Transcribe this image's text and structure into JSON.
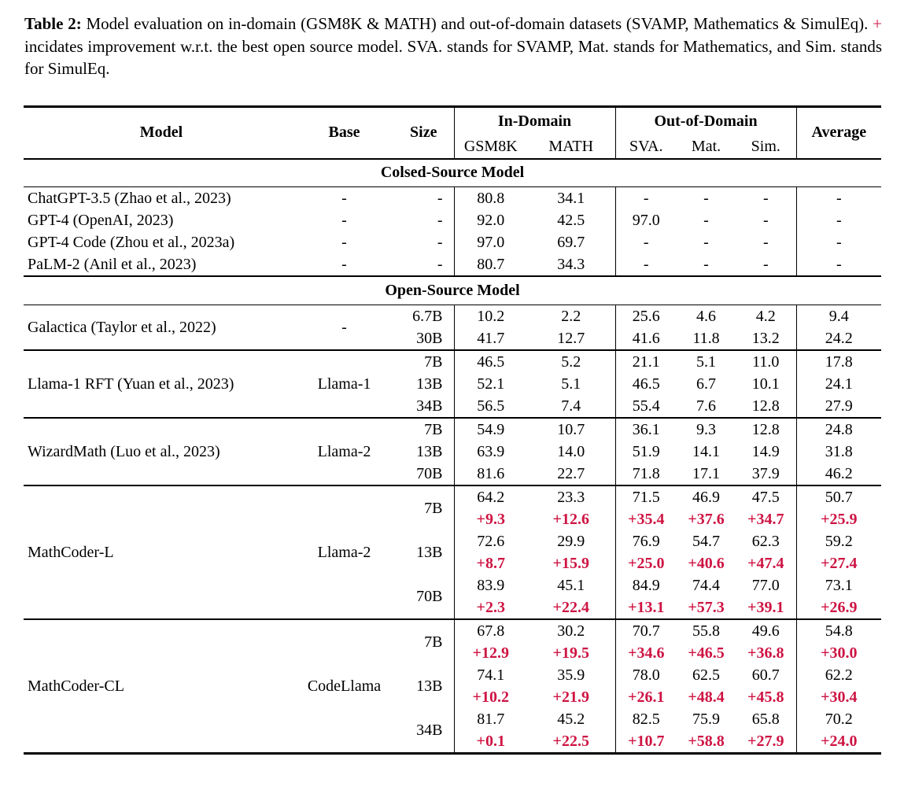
{
  "caption": {
    "label": "Table 2:",
    "text_before_plus": "Model evaluation on in-domain (GSM8K & MATH) and out-of-domain datasets (SVAMP, Mathematics & SimulEq).",
    "plus_symbol": "+",
    "text_after_plus": "incidates improvement w.r.t. the best open source model. SVA. stands for SVAMP, Mat. stands for Mathematics, and Sim. stands for SimulEq."
  },
  "colors": {
    "delta_red": "#ce1443",
    "text": "#000000"
  },
  "table": {
    "column_headers": {
      "model": "Model",
      "base": "Base",
      "size": "Size",
      "in_domain_group": "In-Domain",
      "out_of_domain_group": "Out-of-Domain",
      "in_domain_metrics": [
        "GSM8K",
        "MATH"
      ],
      "out_of_domain_metrics": [
        "SVA.",
        "Mat.",
        "Sim."
      ],
      "average": "Average"
    },
    "metric_keys": [
      "gsm8k",
      "math",
      "sva",
      "mat",
      "sim",
      "average"
    ],
    "sections": [
      {
        "title": "Colsed-Source Model",
        "ruled_groups": false,
        "groups": [
          {
            "model": "ChatGPT-3.5 (Zhao et al., 2023)",
            "base": "-",
            "rows": [
              {
                "size": "-",
                "values": [
                  "80.8",
                  "34.1",
                  "-",
                  "-",
                  "-",
                  "-"
                ],
                "deltas": null
              }
            ]
          },
          {
            "model": "GPT-4 (OpenAI, 2023)",
            "base": "-",
            "rows": [
              {
                "size": "-",
                "values": [
                  "92.0",
                  "42.5",
                  "97.0",
                  "-",
                  "-",
                  "-"
                ],
                "deltas": null
              }
            ]
          },
          {
            "model": "GPT-4 Code (Zhou et al., 2023a)",
            "base": "-",
            "rows": [
              {
                "size": "-",
                "values": [
                  "97.0",
                  "69.7",
                  "-",
                  "-",
                  "-",
                  "-"
                ],
                "deltas": null
              }
            ]
          },
          {
            "model": "PaLM-2 (Anil et al., 2023)",
            "base": "-",
            "rows": [
              {
                "size": "-",
                "values": [
                  "80.7",
                  "34.3",
                  "-",
                  "-",
                  "-",
                  "-"
                ],
                "deltas": null
              }
            ]
          }
        ]
      },
      {
        "title": "Open-Source Model",
        "ruled_groups": true,
        "groups": [
          {
            "model": "Galactica (Taylor et al., 2022)",
            "base": "-",
            "rows": [
              {
                "size": "6.7B",
                "values": [
                  "10.2",
                  "2.2",
                  "25.6",
                  "4.6",
                  "4.2",
                  "9.4"
                ],
                "deltas": null
              },
              {
                "size": "30B",
                "values": [
                  "41.7",
                  "12.7",
                  "41.6",
                  "11.8",
                  "13.2",
                  "24.2"
                ],
                "deltas": null
              }
            ]
          },
          {
            "model": "Llama-1 RFT (Yuan et al., 2023)",
            "base": "Llama-1",
            "rows": [
              {
                "size": "7B",
                "values": [
                  "46.5",
                  "5.2",
                  "21.1",
                  "5.1",
                  "11.0",
                  "17.8"
                ],
                "deltas": null
              },
              {
                "size": "13B",
                "values": [
                  "52.1",
                  "5.1",
                  "46.5",
                  "6.7",
                  "10.1",
                  "24.1"
                ],
                "deltas": null
              },
              {
                "size": "34B",
                "values": [
                  "56.5",
                  "7.4",
                  "55.4",
                  "7.6",
                  "12.8",
                  "27.9"
                ],
                "deltas": null
              }
            ]
          },
          {
            "model": "WizardMath (Luo et al., 2023)",
            "base": "Llama-2",
            "rows": [
              {
                "size": "7B",
                "values": [
                  "54.9",
                  "10.7",
                  "36.1",
                  "9.3",
                  "12.8",
                  "24.8"
                ],
                "deltas": null
              },
              {
                "size": "13B",
                "values": [
                  "63.9",
                  "14.0",
                  "51.9",
                  "14.1",
                  "14.9",
                  "31.8"
                ],
                "deltas": null
              },
              {
                "size": "70B",
                "values": [
                  "81.6",
                  "22.7",
                  "71.8",
                  "17.1",
                  "37.9",
                  "46.2"
                ],
                "deltas": null
              }
            ]
          },
          {
            "model": "MathCoder-L",
            "base": "Llama-2",
            "rows": [
              {
                "size": "7B",
                "values": [
                  "64.2",
                  "23.3",
                  "71.5",
                  "46.9",
                  "47.5",
                  "50.7"
                ],
                "deltas": [
                  "+9.3",
                  "+12.6",
                  "+35.4",
                  "+37.6",
                  "+34.7",
                  "+25.9"
                ]
              },
              {
                "size": "13B",
                "values": [
                  "72.6",
                  "29.9",
                  "76.9",
                  "54.7",
                  "62.3",
                  "59.2"
                ],
                "deltas": [
                  "+8.7",
                  "+15.9",
                  "+25.0",
                  "+40.6",
                  "+47.4",
                  "+27.4"
                ]
              },
              {
                "size": "70B",
                "values": [
                  "83.9",
                  "45.1",
                  "84.9",
                  "74.4",
                  "77.0",
                  "73.1"
                ],
                "deltas": [
                  "+2.3",
                  "+22.4",
                  "+13.1",
                  "+57.3",
                  "+39.1",
                  "+26.9"
                ]
              }
            ]
          },
          {
            "model": "MathCoder-CL",
            "base": "CodeLlama",
            "rows": [
              {
                "size": "7B",
                "values": [
                  "67.8",
                  "30.2",
                  "70.7",
                  "55.8",
                  "49.6",
                  "54.8"
                ],
                "deltas": [
                  "+12.9",
                  "+19.5",
                  "+34.6",
                  "+46.5",
                  "+36.8",
                  "+30.0"
                ]
              },
              {
                "size": "13B",
                "values": [
                  "74.1",
                  "35.9",
                  "78.0",
                  "62.5",
                  "60.7",
                  "62.2"
                ],
                "deltas": [
                  "+10.2",
                  "+21.9",
                  "+26.1",
                  "+48.4",
                  "+45.8",
                  "+30.4"
                ]
              },
              {
                "size": "34B",
                "values": [
                  "81.7",
                  "45.2",
                  "82.5",
                  "75.9",
                  "65.8",
                  "70.2"
                ],
                "deltas": [
                  "+0.1",
                  "+22.5",
                  "+10.7",
                  "+58.8",
                  "+27.9",
                  "+24.0"
                ]
              }
            ]
          }
        ]
      }
    ]
  }
}
